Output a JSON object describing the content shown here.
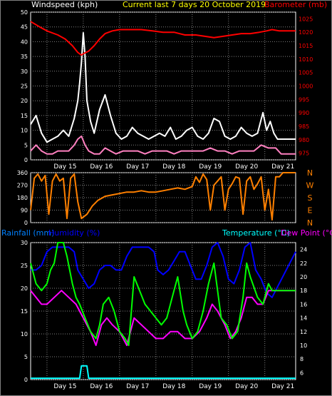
{
  "header": {
    "left_label": "Windspeed (kph)",
    "center_title": "Current last 7 days 20 October 2019",
    "right_label": "Barometer (mb)"
  },
  "rain_header": {
    "rainfall_label": "Rainfall (mm)",
    "humidity_label": "Humidity (%)",
    "temperature_label": "Temperature (°C)",
    "dewpoint_label": "Dew Point (°C)"
  },
  "colors": {
    "background": "#000000",
    "frame": "#ffffff",
    "grid": "#808080",
    "wind_label": "#ffffff",
    "barometer": "#ff0000",
    "gust": "#ffffff",
    "wind_avg": "#ff80c0",
    "direction": "#ff8000",
    "rainfall_axis": "#0080ff",
    "humidity_series": "#0000ff",
    "temperature": "#00ff00",
    "temperature_label": "#00ffff",
    "dewpoint": "#ff00ff",
    "rain_series": "#00ffff",
    "top_title": "#ffff00"
  },
  "chart_data": [
    {
      "type": "line",
      "xlabel": "",
      "x_ticks": [
        "Day 15",
        "Day 16",
        "Day 17",
        "Day 18",
        "Day 19",
        "Day 20",
        "Day 21"
      ],
      "xlim": [
        14.55,
        21.85
      ],
      "left_axis": {
        "ylim": [
          0,
          50
        ],
        "ticks": [
          0,
          5,
          10,
          15,
          20,
          25,
          30,
          35,
          40,
          45,
          50
        ]
      },
      "right_axis": {
        "ylim": [
          972.5,
          1027.5
        ],
        "ticks": [
          975,
          980,
          985,
          990,
          995,
          1000,
          1005,
          1010,
          1015,
          1020,
          1025
        ]
      },
      "series": [
        {
          "axis": "right",
          "color": "#ff0000",
          "x": [
            14.55,
            14.8,
            15.0,
            15.3,
            15.5,
            15.7,
            15.85,
            15.95,
            16.0,
            16.15,
            16.3,
            16.45,
            16.6,
            16.8,
            17.0,
            17.3,
            17.6,
            17.9,
            18.2,
            18.5,
            18.8,
            19.1,
            19.35,
            19.6,
            19.85,
            20.1,
            20.35,
            20.6,
            20.85,
            21.05,
            21.2,
            21.4,
            21.6,
            21.85
          ],
          "y": [
            1024,
            1022,
            1020.5,
            1019,
            1017.5,
            1015,
            1012.5,
            1011.5,
            1012,
            1013,
            1015,
            1017.5,
            1019.5,
            1020.5,
            1021,
            1021,
            1021,
            1020.5,
            1020,
            1020,
            1019,
            1019,
            1018.5,
            1018,
            1018.5,
            1019,
            1019.5,
            1019.5,
            1020,
            1020.5,
            1021,
            1020.5,
            1020.5,
            1020.5
          ]
        },
        {
          "axis": "left",
          "color": "#ffffff",
          "x": [
            14.55,
            14.7,
            14.85,
            15.0,
            15.15,
            15.3,
            15.45,
            15.6,
            15.75,
            15.85,
            15.9,
            15.95,
            16.0,
            16.05,
            16.1,
            16.2,
            16.3,
            16.45,
            16.6,
            16.75,
            16.9,
            17.05,
            17.2,
            17.35,
            17.5,
            17.65,
            17.8,
            17.95,
            18.1,
            18.25,
            18.4,
            18.55,
            18.7,
            18.85,
            19.0,
            19.15,
            19.3,
            19.45,
            19.6,
            19.75,
            19.9,
            20.05,
            20.2,
            20.35,
            20.5,
            20.65,
            20.8,
            20.95,
            21.05,
            21.15,
            21.25,
            21.35,
            21.45,
            21.85
          ],
          "y": [
            12,
            15,
            9,
            6,
            7,
            8,
            10,
            8,
            14,
            20,
            26,
            33,
            43,
            35,
            20,
            13,
            9,
            17,
            22,
            15,
            9,
            7,
            8,
            11,
            9,
            8,
            7,
            8,
            9,
            8,
            11,
            7,
            8,
            10,
            11,
            8,
            7,
            9,
            14,
            13,
            8,
            7,
            8,
            11,
            9,
            8,
            9,
            16,
            10,
            13,
            9,
            7,
            7,
            7
          ]
        },
        {
          "axis": "left",
          "color": "#ff80c0",
          "x": [
            14.55,
            14.7,
            14.85,
            15.0,
            15.15,
            15.3,
            15.45,
            15.6,
            15.75,
            15.85,
            15.95,
            16.05,
            16.15,
            16.3,
            16.45,
            16.6,
            16.75,
            16.9,
            17.1,
            17.3,
            17.5,
            17.7,
            17.9,
            18.1,
            18.3,
            18.5,
            18.7,
            18.9,
            19.1,
            19.3,
            19.5,
            19.7,
            19.9,
            20.1,
            20.3,
            20.5,
            20.7,
            20.9,
            21.1,
            21.3,
            21.45,
            21.85
          ],
          "y": [
            3,
            5,
            3,
            2,
            2,
            3,
            3,
            3,
            5,
            7,
            8,
            5,
            3,
            2,
            2,
            4,
            3,
            2,
            3,
            3,
            3,
            2,
            3,
            3,
            3,
            2,
            3,
            3,
            3,
            3,
            4,
            3,
            3,
            2,
            3,
            3,
            3,
            5,
            4,
            4,
            2,
            2
          ]
        }
      ]
    },
    {
      "type": "line",
      "xlabel": "",
      "xlim": [
        14.55,
        21.85
      ],
      "ylim": [
        0,
        360
      ],
      "y_ticks": [
        0,
        90,
        180,
        270,
        360
      ],
      "compass_labels": [
        "N",
        "W",
        "S",
        "E",
        "N"
      ],
      "series": [
        {
          "color": "#ff8000",
          "x": [
            14.55,
            14.65,
            14.75,
            14.85,
            14.95,
            15.05,
            15.15,
            15.25,
            15.35,
            15.45,
            15.55,
            15.65,
            15.75,
            15.85,
            15.95,
            16.1,
            16.25,
            16.4,
            16.6,
            16.8,
            17.0,
            17.2,
            17.4,
            17.6,
            17.8,
            18.0,
            18.2,
            18.4,
            18.6,
            18.8,
            19.0,
            19.1,
            19.2,
            19.3,
            19.4,
            19.5,
            19.6,
            19.7,
            19.8,
            19.9,
            20.0,
            20.1,
            20.2,
            20.3,
            20.4,
            20.5,
            20.6,
            20.7,
            20.8,
            20.9,
            21.0,
            21.1,
            21.2,
            21.3,
            21.4,
            21.5,
            21.6,
            21.85
          ],
          "y": [
            90,
            320,
            350,
            300,
            340,
            60,
            300,
            350,
            300,
            320,
            30,
            320,
            350,
            150,
            30,
            60,
            120,
            160,
            190,
            200,
            210,
            220,
            220,
            230,
            220,
            220,
            230,
            240,
            250,
            240,
            260,
            330,
            290,
            350,
            310,
            90,
            270,
            300,
            330,
            90,
            240,
            280,
            330,
            320,
            60,
            300,
            330,
            240,
            280,
            330,
            90,
            240,
            20,
            330,
            330,
            360,
            360,
            360
          ]
        }
      ]
    },
    {
      "type": "line",
      "xlabel": "",
      "xlim": [
        14.55,
        21.85
      ],
      "left_axis": {
        "ylim": [
          0,
          30
        ],
        "ticks": [
          0,
          5,
          10,
          15,
          20,
          25,
          30
        ]
      },
      "right_axis": {
        "ylim": [
          5,
          25
        ],
        "ticks": [
          6,
          8,
          10,
          12,
          14,
          16,
          18,
          20,
          22,
          24
        ]
      },
      "series": [
        {
          "axis": "left",
          "color": "#0000ff",
          "x": [
            14.55,
            14.7,
            14.85,
            15.0,
            15.15,
            15.3,
            15.45,
            15.6,
            15.75,
            15.85,
            16.0,
            16.15,
            16.3,
            16.45,
            16.6,
            16.75,
            16.9,
            17.05,
            17.2,
            17.35,
            17.5,
            17.65,
            17.8,
            17.95,
            18.05,
            18.2,
            18.35,
            18.5,
            18.65,
            18.8,
            18.95,
            19.1,
            19.25,
            19.4,
            19.55,
            19.7,
            19.85,
            20.0,
            20.15,
            20.3,
            20.45,
            20.6,
            20.75,
            20.9,
            21.05,
            21.2,
            21.85
          ],
          "y": [
            24,
            24,
            25,
            28,
            29,
            29,
            29,
            29,
            28,
            24,
            22,
            20,
            21,
            24,
            25,
            25,
            24,
            24,
            27,
            29,
            29,
            29,
            29,
            28,
            24,
            23,
            24,
            26,
            28,
            28,
            25,
            22,
            22,
            25,
            29,
            30,
            27,
            22,
            21,
            24,
            29,
            30,
            24,
            22,
            19,
            18,
            28
          ]
        },
        {
          "axis": "right",
          "color": "#00ff00",
          "x": [
            14.55,
            14.7,
            14.85,
            15.0,
            15.1,
            15.2,
            15.3,
            15.45,
            15.55,
            15.7,
            15.8,
            15.9,
            16.05,
            16.2,
            16.35,
            16.45,
            16.55,
            16.7,
            16.85,
            17.0,
            17.15,
            17.25,
            17.4,
            17.55,
            17.7,
            17.85,
            18.0,
            18.15,
            18.3,
            18.45,
            18.6,
            18.75,
            18.85,
            19.0,
            19.15,
            19.3,
            19.45,
            19.6,
            19.8,
            19.95,
            20.1,
            20.25,
            20.4,
            20.5,
            20.6,
            20.8,
            20.95,
            21.1,
            21.2,
            21.85
          ],
          "y": [
            22,
            19,
            18,
            19,
            21,
            22,
            25,
            25,
            23,
            19,
            17,
            16,
            14,
            12,
            11,
            13,
            16,
            17,
            15,
            12,
            11,
            10,
            20,
            18,
            16,
            15,
            14,
            13,
            14,
            17,
            20,
            15,
            13,
            11,
            12,
            15,
            19,
            22,
            14,
            13,
            11,
            12,
            17,
            22,
            20,
            17,
            16,
            19,
            18,
            18
          ]
        },
        {
          "axis": "right",
          "color": "#ff00ff",
          "x": [
            14.55,
            14.7,
            14.85,
            15.0,
            15.2,
            15.4,
            15.6,
            15.8,
            16.0,
            16.2,
            16.35,
            16.5,
            16.65,
            16.8,
            17.0,
            17.2,
            17.4,
            17.6,
            17.8,
            18.0,
            18.2,
            18.4,
            18.6,
            18.8,
            19.0,
            19.2,
            19.4,
            19.55,
            19.7,
            19.9,
            20.05,
            20.2,
            20.35,
            20.5,
            20.65,
            20.8,
            20.95,
            21.1,
            21.85
          ],
          "y": [
            18,
            17,
            16,
            16,
            17,
            18,
            17,
            16,
            14,
            12,
            10,
            13,
            14,
            13,
            12,
            10,
            14,
            13,
            12,
            11,
            11,
            12,
            12,
            11,
            11,
            12,
            14,
            16,
            15,
            13,
            11,
            12,
            14,
            17,
            17,
            16,
            16,
            18,
            18
          ]
        },
        {
          "axis": "left",
          "color": "#00ffff",
          "x": [
            14.55,
            15.9,
            15.95,
            16.0,
            16.05,
            16.1,
            16.15,
            21.85
          ],
          "y": [
            0.3,
            0.3,
            3,
            3,
            3,
            3,
            0.3,
            0.3
          ]
        }
      ]
    }
  ]
}
